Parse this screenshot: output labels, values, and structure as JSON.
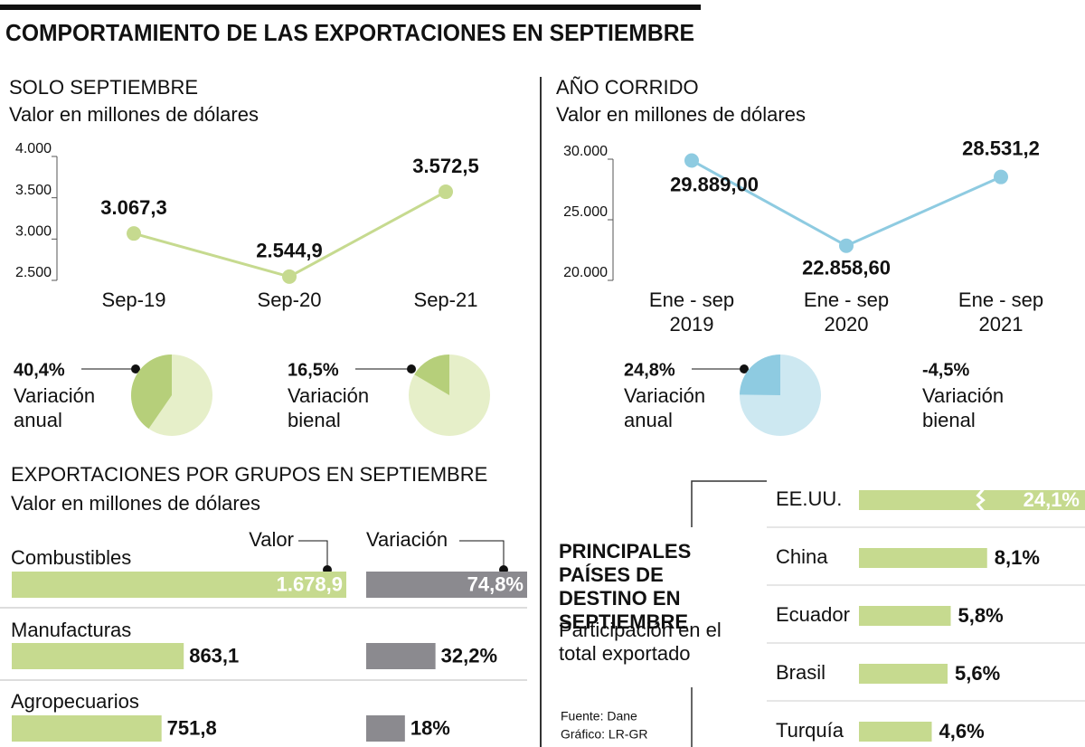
{
  "title": "COMPORTAMIENTO DE LAS EXPORTACIONES EN SEPTIEMBRE",
  "source": [
    "Fuente: Dane",
    "Gráfico: LR-GR"
  ],
  "chart_data": [
    {
      "type": "line",
      "title": "SOLO SEPTIEMBRE",
      "subtitle": "Valor en millones de dólares",
      "categories": [
        "Sep-19",
        "Sep-20",
        "Sep-21"
      ],
      "values": [
        3067.3,
        2544.9,
        3572.5
      ],
      "value_labels": [
        "3.067,3",
        "2.544,9",
        "3.572,5"
      ],
      "color": "#c6da8f",
      "ylim": [
        2500,
        4000
      ],
      "yticks": [
        {
          "value": 2500,
          "label": "2.500"
        },
        {
          "value": 3000,
          "label": "3.000"
        },
        {
          "value": 3500,
          "label": "3.500"
        },
        {
          "value": 4000,
          "label": "4.000"
        }
      ]
    },
    {
      "type": "line",
      "title": "AÑO CORRIDO",
      "subtitle": "Valor en millones de dólares",
      "categories": [
        "Ene - sep 2019",
        "Ene - sep 2020",
        "Ene - sep 2021"
      ],
      "values": [
        29889.0,
        22858.6,
        28531.2
      ],
      "value_labels": [
        "29.889,00",
        "22.858,60",
        "28.531,2"
      ],
      "color": "#8ecbe1",
      "ylim": [
        20000,
        30000
      ],
      "yticks": [
        {
          "value": 20000,
          "label": "20.000"
        },
        {
          "value": 25000,
          "label": "25.000"
        },
        {
          "value": 30000,
          "label": "30.000"
        }
      ]
    },
    {
      "type": "pie",
      "label": "Variación anual",
      "values": [
        40.4
      ],
      "value_labels": [
        "40,4%"
      ],
      "colors": [
        "#b6cf7a",
        "#e6efc9"
      ]
    },
    {
      "type": "pie",
      "label": "Variación bienal",
      "values": [
        16.5
      ],
      "value_labels": [
        "16,5%"
      ],
      "colors": [
        "#b6cf7a",
        "#e6efc9"
      ]
    },
    {
      "type": "pie",
      "label": "Variación anual",
      "values": [
        24.8
      ],
      "value_labels": [
        "24,8%"
      ],
      "colors": [
        "#8ecbe1",
        "#cde8f1"
      ]
    },
    {
      "type": "stat",
      "label": "Variación bienal",
      "values": [
        -4.5
      ],
      "value_labels": [
        "-4,5%"
      ]
    },
    {
      "type": "grouped-bar",
      "title": "EXPORTACIONES POR GRUPOS EN SEPTIEMBRE",
      "subtitle": "Valor en millones de dólares",
      "categories": [
        "Combustibles",
        "Manufacturas",
        "Agropecuarios"
      ],
      "series": [
        {
          "name": "Valor",
          "color": "#c6da8f",
          "values": [
            1678.9,
            863.1,
            751.8
          ],
          "value_labels": [
            "1.678,9",
            "863,1",
            "751,8"
          ]
        },
        {
          "name": "Variación",
          "color": "#8b8a8f",
          "values": [
            74.8,
            32.2,
            18
          ],
          "value_labels": [
            "74,8%",
            "32,2%",
            "18%"
          ]
        }
      ]
    },
    {
      "type": "hbar",
      "title": "PRINCIPALES PAÍSES DE DESTINO EN SEPTIEMBRE",
      "subtitle": "Participación en el total exportado",
      "categories": [
        "EE.UU.",
        "China",
        "Ecuador",
        "Brasil",
        "Turquía"
      ],
      "values": [
        24.1,
        8.1,
        5.8,
        5.6,
        4.6
      ],
      "value_labels": [
        "24,1%",
        "8,1%",
        "5,8%",
        "5,6%",
        "4,6%"
      ],
      "color": "#c6da8f",
      "axis_break": true
    }
  ]
}
